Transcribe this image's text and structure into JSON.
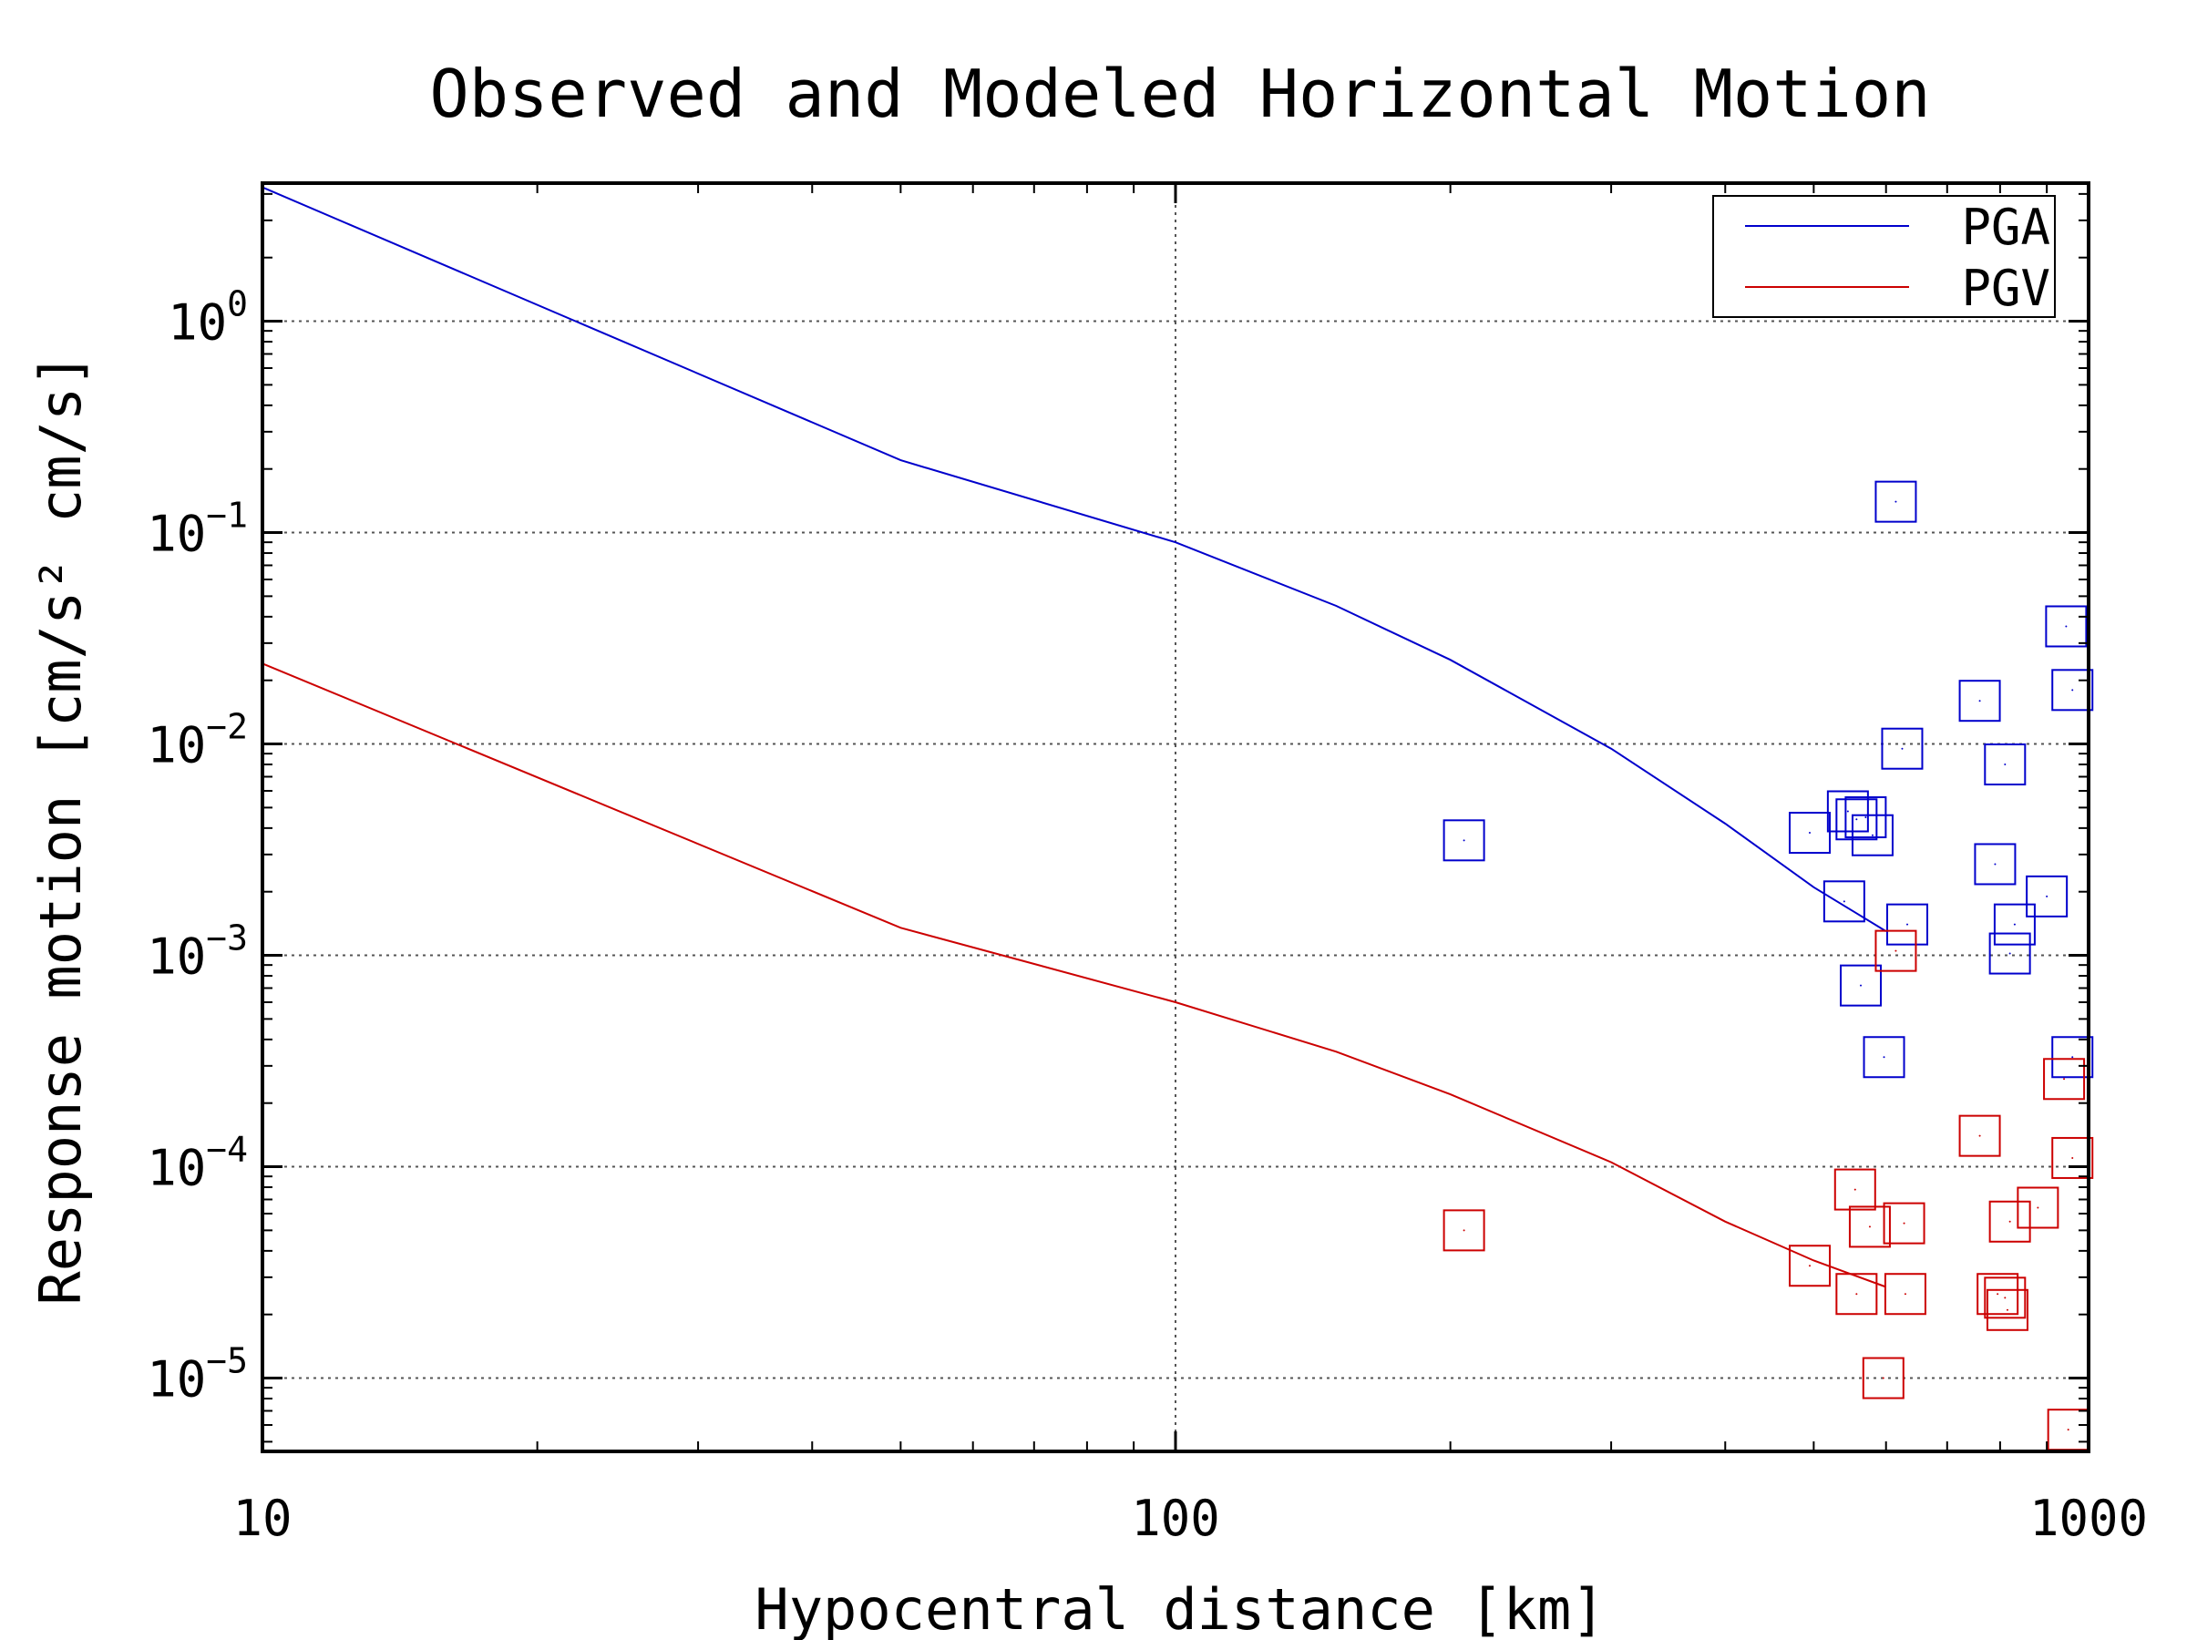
{
  "chart_data": {
    "type": "scatter",
    "title": "Observed and Modeled Horizontal Motion",
    "xlabel": "Hypocentral distance [km]",
    "ylabel": "Response motion [cm/s²  cm/s]",
    "xscale": "log",
    "yscale": "log",
    "xlim": [
      10,
      1000
    ],
    "ylim": [
      4.5e-06,
      4.5
    ],
    "xticks": [
      10,
      100,
      1000
    ],
    "xtick_labels": [
      "10",
      "100",
      "1000"
    ],
    "yticks": [
      1e-05,
      0.0001,
      0.001,
      0.01,
      0.1,
      1
    ],
    "ytick_labels": [
      {
        "base": "10",
        "exp": "−5"
      },
      {
        "base": "10",
        "exp": "−4"
      },
      {
        "base": "10",
        "exp": "−3"
      },
      {
        "base": "10",
        "exp": "−2"
      },
      {
        "base": "10",
        "exp": "−1"
      },
      {
        "base": "10",
        "exp": "0"
      }
    ],
    "grid": true,
    "legend_position": "top-right",
    "legend": [
      "PGA",
      "PGV"
    ],
    "colors": {
      "PGA": "#0000cc",
      "PGV": "#cc0000"
    },
    "model_lines": [
      {
        "name": "PGA",
        "color": "#0000cc",
        "x": [
          10,
          50,
          100,
          150,
          200,
          300,
          400,
          500,
          600
        ],
        "y": [
          4.3,
          0.22,
          0.09,
          0.045,
          0.025,
          0.0095,
          0.0042,
          0.0021,
          0.0013
        ]
      },
      {
        "name": "PGV",
        "color": "#cc0000",
        "x": [
          10,
          50,
          100,
          150,
          200,
          300,
          400,
          500,
          600
        ],
        "y": [
          0.024,
          0.00135,
          0.0006,
          0.00035,
          0.00022,
          0.000105,
          5.5e-05,
          3.6e-05,
          2.7e-05
        ]
      }
    ],
    "observed": [
      {
        "name": "PGA",
        "color": "#0000cc",
        "x": [
          207,
          615,
          625,
          570,
          495,
          540,
          563,
          580,
          545,
          557,
          597,
          633,
          760,
          790,
          810,
          945,
          960,
          830,
          900,
          820,
          960
        ],
        "y": [
          0.0035,
          0.14,
          0.0095,
          0.0045,
          0.0038,
          0.0018,
          0.00072,
          0.0037,
          0.0048,
          0.0044,
          0.00033,
          0.0014,
          0.016,
          0.0027,
          0.008,
          0.036,
          0.018,
          0.0014,
          0.0019,
          0.00102,
          0.00033
        ]
      },
      {
        "name": "PGV",
        "color": "#cc0000",
        "x": [
          207,
          615,
          495,
          555,
          557,
          576,
          596,
          628,
          630,
          760,
          795,
          810,
          820,
          815,
          880,
          940,
          960,
          950
        ],
        "y": [
          5e-05,
          0.00105,
          3.4e-05,
          7.8e-05,
          2.5e-05,
          5.2e-05,
          1e-05,
          5.4e-05,
          2.5e-05,
          0.00014,
          2.5e-05,
          2.4e-05,
          5.5e-05,
          2.1e-05,
          6.4e-05,
          0.00026,
          0.00011,
          5.7e-06
        ]
      }
    ]
  }
}
